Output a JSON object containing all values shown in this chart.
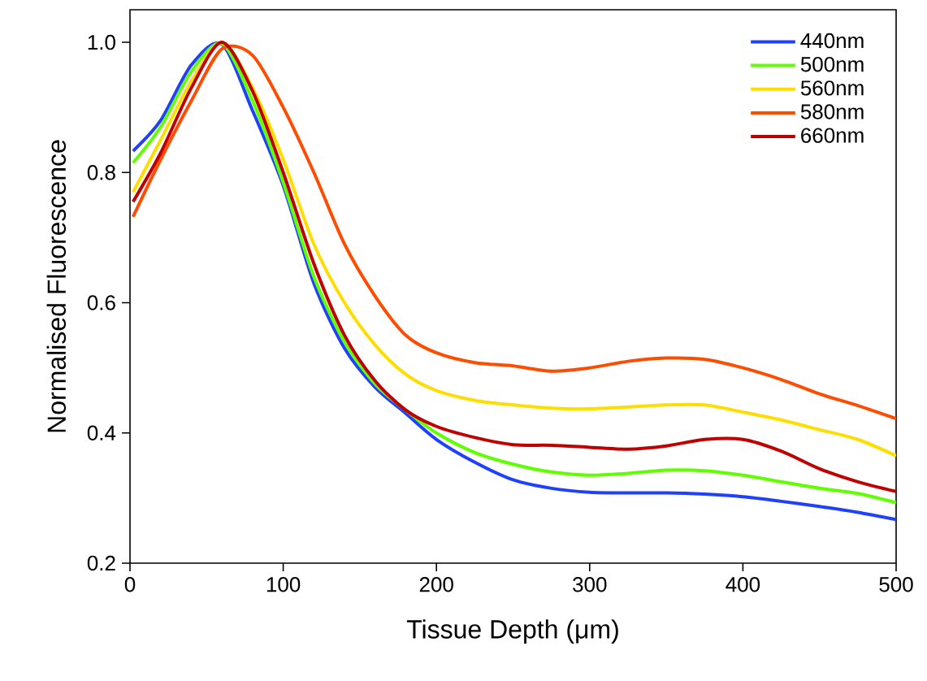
{
  "chart_data": {
    "type": "line",
    "xlabel": "Tissue Depth (μm)",
    "ylabel": "Normalised Fluorescence",
    "xlim": [
      0,
      500
    ],
    "ylim": [
      0.2,
      1.05
    ],
    "xticks": [
      0,
      100,
      200,
      300,
      400,
      500
    ],
    "yticks": [
      {
        "value": 0.2,
        "label": "0.2"
      },
      {
        "value": 0.4,
        "label": "0.4"
      },
      {
        "value": 0.6,
        "label": "0.6"
      },
      {
        "value": 0.8,
        "label": "0.8"
      },
      {
        "value": 1.0,
        "label": "1.0"
      }
    ],
    "legend": "top right",
    "grid": false,
    "marker": "none",
    "line_style": "solid",
    "x": [
      2,
      20,
      40,
      60,
      80,
      100,
      120,
      140,
      160,
      180,
      200,
      225,
      250,
      275,
      300,
      325,
      350,
      375,
      400,
      425,
      450,
      475,
      500
    ],
    "series": [
      {
        "name": "440nm",
        "color": "#2040ff",
        "values": [
          0.833,
          0.88,
          0.965,
          0.997,
          0.895,
          0.78,
          0.63,
          0.53,
          0.47,
          0.43,
          0.39,
          0.355,
          0.328,
          0.315,
          0.309,
          0.308,
          0.308,
          0.306,
          0.302,
          0.295,
          0.287,
          0.278,
          0.267
        ]
      },
      {
        "name": "500nm",
        "color": "#60ff00",
        "values": [
          0.815,
          0.87,
          0.955,
          0.998,
          0.91,
          0.785,
          0.64,
          0.54,
          0.475,
          0.435,
          0.4,
          0.37,
          0.352,
          0.34,
          0.335,
          0.338,
          0.343,
          0.342,
          0.335,
          0.325,
          0.315,
          0.307,
          0.293
        ]
      },
      {
        "name": "560nm",
        "color": "#ffdd00",
        "values": [
          0.77,
          0.85,
          0.94,
          1.0,
          0.93,
          0.82,
          0.69,
          0.6,
          0.535,
          0.49,
          0.465,
          0.45,
          0.443,
          0.438,
          0.437,
          0.44,
          0.443,
          0.443,
          0.432,
          0.42,
          0.405,
          0.39,
          0.365
        ]
      },
      {
        "name": "580nm",
        "color": "#ff4d00",
        "values": [
          0.732,
          0.82,
          0.91,
          0.99,
          0.98,
          0.9,
          0.8,
          0.69,
          0.61,
          0.55,
          0.523,
          0.508,
          0.503,
          0.495,
          0.5,
          0.51,
          0.515,
          0.513,
          0.5,
          0.482,
          0.46,
          0.442,
          0.422
        ]
      },
      {
        "name": "660nm",
        "color": "#c00000",
        "values": [
          0.755,
          0.83,
          0.93,
          1.0,
          0.925,
          0.8,
          0.66,
          0.55,
          0.48,
          0.435,
          0.41,
          0.393,
          0.382,
          0.381,
          0.378,
          0.375,
          0.38,
          0.39,
          0.39,
          0.372,
          0.345,
          0.325,
          0.31
        ]
      }
    ]
  }
}
